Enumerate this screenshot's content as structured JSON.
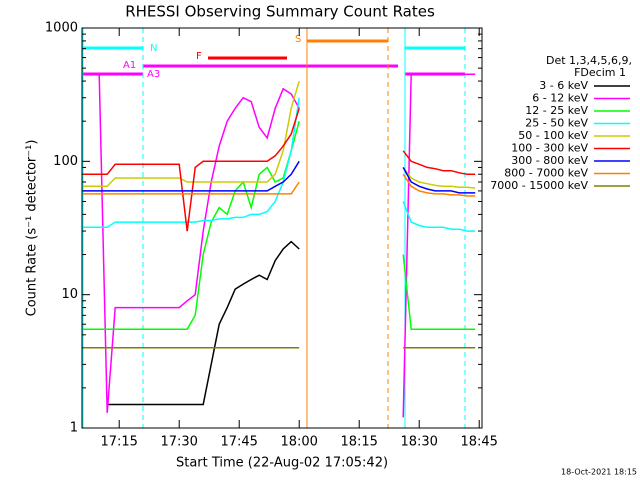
{
  "chart_data": {
    "type": "line",
    "title": "RHESSI Observing Summary Count Rates",
    "xlabel": "Start Time (22-Aug-02 17:05:42)",
    "ylabel": "Count Rate (s⁻¹ detector⁻¹)",
    "footer": "18-Oct-2021 18:15",
    "legend_header": [
      "Det 1,3,4,5,6,9,",
      "FDecim 1"
    ],
    "annotations": [
      "N",
      "A1",
      "A3",
      "F",
      "S"
    ],
    "log_y": true,
    "xlim": [
      5.7,
      105.7
    ],
    "xticks": [
      {
        "value": 15,
        "label": "17:15"
      },
      {
        "value": 30,
        "label": "17:30"
      },
      {
        "value": 45,
        "label": "17:45"
      },
      {
        "value": 60,
        "label": "18:00"
      },
      {
        "value": 75,
        "label": "18:15"
      },
      {
        "value": 90,
        "label": "18:30"
      },
      {
        "value": 105,
        "label": "18:45"
      }
    ],
    "ylim": [
      1,
      1000
    ],
    "yticks": [
      1,
      10,
      100,
      1000
    ],
    "x": [
      6,
      8,
      10,
      12,
      14,
      16,
      18,
      20,
      22,
      24,
      26,
      28,
      30,
      32,
      34,
      36,
      38,
      40,
      42,
      44,
      46,
      48,
      50,
      52,
      54,
      56,
      58,
      60,
      62,
      86,
      88,
      90,
      92,
      94,
      96,
      98,
      100,
      102,
      104
    ],
    "series": [
      {
        "name": "3 - 6 keV",
        "color": "#000000",
        "values": [
          null,
          null,
          null,
          1.5,
          1.5,
          1.5,
          1.5,
          1.5,
          1.5,
          1.5,
          1.5,
          1.5,
          1.5,
          1.5,
          1.5,
          1.5,
          3,
          6,
          8,
          11,
          12,
          13,
          14,
          13,
          18,
          22,
          25,
          22,
          null,
          null,
          null,
          null,
          null,
          null,
          null,
          null,
          null,
          null,
          null
        ]
      },
      {
        "name": "6 - 12 keV",
        "color": "#ff00ff",
        "values": [
          450,
          450,
          450,
          1.3,
          8,
          8,
          8,
          8,
          8,
          8,
          8,
          8,
          8,
          9,
          10,
          30,
          70,
          130,
          200,
          250,
          300,
          280,
          180,
          150,
          250,
          350,
          320,
          250,
          null,
          1.2,
          450,
          450,
          450,
          450,
          450,
          450,
          450,
          450,
          450
        ]
      },
      {
        "name": "12 - 25 keV",
        "color": "#00ff00",
        "values": [
          5.5,
          5.5,
          5.5,
          5.5,
          5.5,
          5.5,
          5.5,
          5.5,
          5.5,
          5.5,
          5.5,
          5.5,
          5.5,
          5.5,
          7,
          20,
          35,
          45,
          40,
          60,
          70,
          45,
          80,
          90,
          70,
          75,
          120,
          200,
          null,
          20,
          5.5,
          5.5,
          5.5,
          5.5,
          5.5,
          5.5,
          5.5,
          5.5,
          5.5
        ]
      },
      {
        "name": "25 - 50 keV",
        "color": "#00ffff",
        "values": [
          32,
          32,
          32,
          32,
          35,
          35,
          35,
          35,
          35,
          35,
          35,
          35,
          35,
          35,
          35,
          36,
          36,
          37,
          37,
          38,
          38,
          40,
          40,
          42,
          50,
          70,
          120,
          300,
          null,
          50,
          35,
          33,
          32,
          32,
          32,
          31,
          31,
          30,
          30
        ]
      },
      {
        "name": "50 - 100 keV",
        "color": "#cccc00",
        "values": [
          65,
          65,
          65,
          65,
          75,
          75,
          75,
          75,
          75,
          75,
          75,
          75,
          75,
          70,
          70,
          70,
          70,
          70,
          70,
          70,
          70,
          70,
          70,
          70,
          80,
          120,
          250,
          400,
          null,
          90,
          75,
          70,
          68,
          66,
          65,
          65,
          64,
          64,
          63
        ]
      },
      {
        "name": "100 - 300 keV",
        "color": "#ff0000",
        "values": [
          80,
          80,
          80,
          80,
          95,
          95,
          95,
          95,
          95,
          95,
          95,
          95,
          95,
          30,
          90,
          100,
          100,
          100,
          100,
          100,
          100,
          100,
          100,
          100,
          110,
          130,
          160,
          250,
          null,
          120,
          100,
          95,
          90,
          88,
          85,
          85,
          82,
          80,
          80
        ]
      },
      {
        "name": "300 - 800 keV",
        "color": "#0000ff",
        "values": [
          60,
          60,
          60,
          60,
          60,
          60,
          60,
          60,
          60,
          60,
          60,
          60,
          60,
          60,
          60,
          60,
          60,
          60,
          60,
          60,
          60,
          60,
          60,
          60,
          65,
          70,
          80,
          100,
          null,
          90,
          70,
          65,
          62,
          60,
          60,
          60,
          58,
          58,
          58
        ]
      },
      {
        "name": "800 - 7000 keV",
        "color": "#ff8000",
        "values": [
          57,
          57,
          57,
          57,
          57,
          57,
          57,
          57,
          57,
          57,
          57,
          57,
          57,
          57,
          57,
          57,
          57,
          57,
          57,
          57,
          57,
          57,
          57,
          57,
          57,
          57,
          57,
          70,
          null,
          80,
          65,
          60,
          58,
          57,
          57,
          56,
          56,
          55,
          55
        ]
      },
      {
        "name": "7000 - 15000 keV",
        "color": "#808000",
        "values": [
          4,
          4,
          4,
          4,
          4,
          4,
          4,
          4,
          4,
          4,
          4,
          4,
          4,
          4,
          4,
          4,
          4,
          4,
          4,
          4,
          4,
          4,
          4,
          4,
          4,
          4,
          4,
          4,
          null,
          4,
          4,
          4,
          4,
          4,
          4,
          4,
          4,
          4,
          4
        ]
      }
    ]
  }
}
